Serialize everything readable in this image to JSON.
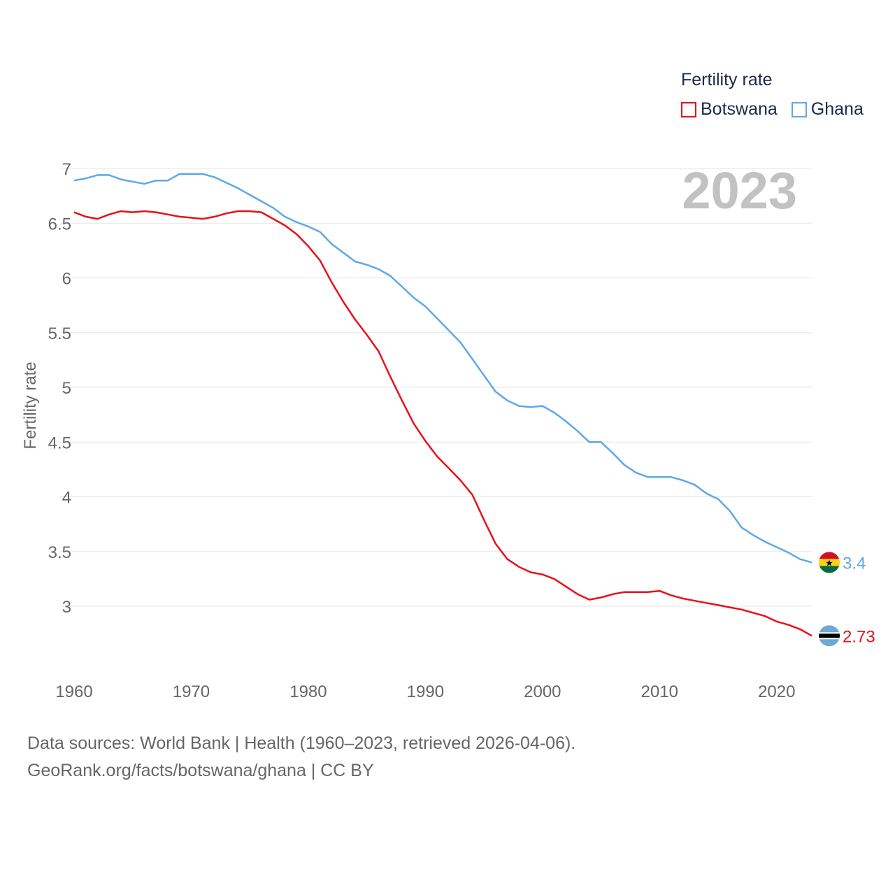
{
  "legend": {
    "title": "Fertility rate"
  },
  "sources": {
    "line1": "Data sources: World Bank | Health (1960–2023, retrieved 2026-04-06).",
    "line2": "GeoRank.org/facts/botswana/ghana | CC BY"
  },
  "chart_data": {
    "type": "line",
    "title": "",
    "year_watermark": "2023",
    "xlabel": "",
    "ylabel": "Fertility rate",
    "xlim": [
      1960,
      2023
    ],
    "ylim": [
      2.5,
      7.1
    ],
    "x_ticks": [
      1960,
      1970,
      1980,
      1990,
      2000,
      2010,
      2020
    ],
    "y_ticks": [
      3,
      3.5,
      4,
      4.5,
      5,
      5.5,
      6,
      6.5,
      7
    ],
    "y_tick_labels": [
      "3",
      "3.5",
      "4",
      "4.5",
      "5",
      "5.5",
      "6",
      "6.5",
      "7"
    ],
    "x": [
      1960,
      1961,
      1962,
      1963,
      1964,
      1965,
      1966,
      1967,
      1968,
      1969,
      1970,
      1971,
      1972,
      1973,
      1974,
      1975,
      1976,
      1977,
      1978,
      1979,
      1980,
      1981,
      1982,
      1983,
      1984,
      1985,
      1986,
      1987,
      1988,
      1989,
      1990,
      1991,
      1992,
      1993,
      1994,
      1995,
      1996,
      1997,
      1998,
      1999,
      2000,
      2001,
      2002,
      2003,
      2004,
      2005,
      2006,
      2007,
      2008,
      2009,
      2010,
      2011,
      2012,
      2013,
      2014,
      2015,
      2016,
      2017,
      2018,
      2019,
      2020,
      2021,
      2022,
      2023
    ],
    "series": [
      {
        "name": "Botswana",
        "color": "#e8111a",
        "end_label": "2.73",
        "flag": "botswana-flag",
        "values": [
          6.6,
          6.56,
          6.54,
          6.58,
          6.61,
          6.6,
          6.61,
          6.6,
          6.58,
          6.56,
          6.55,
          6.54,
          6.56,
          6.59,
          6.61,
          6.61,
          6.6,
          6.54,
          6.48,
          6.4,
          6.29,
          6.16,
          5.96,
          5.78,
          5.62,
          5.48,
          5.33,
          5.1,
          4.88,
          4.67,
          4.51,
          4.37,
          4.26,
          4.15,
          4.02,
          3.79,
          3.57,
          3.43,
          3.36,
          3.31,
          3.29,
          3.25,
          3.18,
          3.11,
          3.06,
          3.08,
          3.11,
          3.13,
          3.13,
          3.13,
          3.14,
          3.1,
          3.07,
          3.05,
          3.03,
          3.01,
          2.99,
          2.97,
          2.94,
          2.91,
          2.86,
          2.83,
          2.79,
          2.73
        ]
      },
      {
        "name": "Ghana",
        "color": "#5ea8ea",
        "end_label": "3.4",
        "flag": "ghana-flag",
        "values": [
          6.89,
          6.91,
          6.94,
          6.94,
          6.9,
          6.88,
          6.86,
          6.89,
          6.89,
          6.95,
          6.95,
          6.95,
          6.92,
          6.87,
          6.82,
          6.76,
          6.7,
          6.64,
          6.56,
          6.51,
          6.47,
          6.42,
          6.31,
          6.23,
          6.15,
          6.12,
          6.08,
          6.02,
          5.92,
          5.82,
          5.74,
          5.63,
          5.52,
          5.41,
          5.26,
          5.11,
          4.96,
          4.88,
          4.83,
          4.82,
          4.83,
          4.77,
          4.69,
          4.6,
          4.5,
          4.5,
          4.4,
          4.29,
          4.22,
          4.18,
          4.18,
          4.18,
          4.15,
          4.11,
          4.03,
          3.98,
          3.87,
          3.72,
          3.65,
          3.59,
          3.54,
          3.49,
          3.43,
          3.4
        ]
      }
    ]
  }
}
